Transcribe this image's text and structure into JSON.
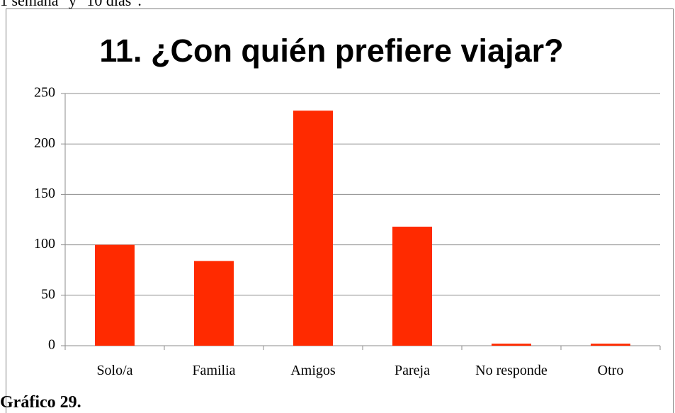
{
  "page_text": {
    "top_line": "1 semana\" y \"10 días\".",
    "caption": "Gráfico 29."
  },
  "chart_data": {
    "type": "bar",
    "title": "11. ¿Con quién prefiere viajar?",
    "categories": [
      "Solo/a",
      "Familia",
      "Amigos",
      "Pareja",
      "No responde",
      "Otro"
    ],
    "values": [
      100,
      84,
      233,
      118,
      2,
      2
    ],
    "color": "#ff2a00",
    "ylim": [
      0,
      250
    ],
    "yticks": [
      0,
      50,
      100,
      150,
      200,
      250
    ],
    "grid": true
  }
}
